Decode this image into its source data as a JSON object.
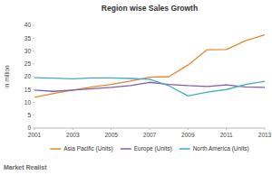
{
  "chart_data": {
    "type": "line",
    "title": "Region wise Sales Growth",
    "y_label": "in million",
    "source": "Market Realist",
    "x": [
      2001,
      2002,
      2003,
      2004,
      2005,
      2006,
      2007,
      2008,
      2009,
      2010,
      2011,
      2012,
      2013
    ],
    "xlim": [
      2001,
      2013
    ],
    "xticks": [
      2001,
      2003,
      2005,
      2007,
      2009,
      2011,
      2013
    ],
    "ylim": [
      0,
      40
    ],
    "yticks": [
      0,
      5,
      10,
      15,
      20,
      25,
      30,
      35,
      40
    ],
    "grid": false,
    "legend": "bottom",
    "series": [
      {
        "name": "Asia Pacific (Units)",
        "color": "#e8862a",
        "values": [
          12,
          13.5,
          14.8,
          16,
          17,
          18.3,
          19.8,
          20,
          24.5,
          30.5,
          30.6,
          34,
          36.3
        ]
      },
      {
        "name": "Europe (Units)",
        "color": "#7d5fa6",
        "values": [
          14.8,
          14.3,
          14.8,
          15.3,
          15.8,
          16.5,
          17.8,
          17,
          16.5,
          16.2,
          16.8,
          16,
          15.8
        ]
      },
      {
        "name": "North America (Units)",
        "color": "#45aac8",
        "values": [
          19.6,
          19.4,
          19.2,
          19.5,
          19.5,
          19.3,
          19,
          16.5,
          12.5,
          14,
          15,
          17,
          18.2
        ]
      }
    ]
  }
}
